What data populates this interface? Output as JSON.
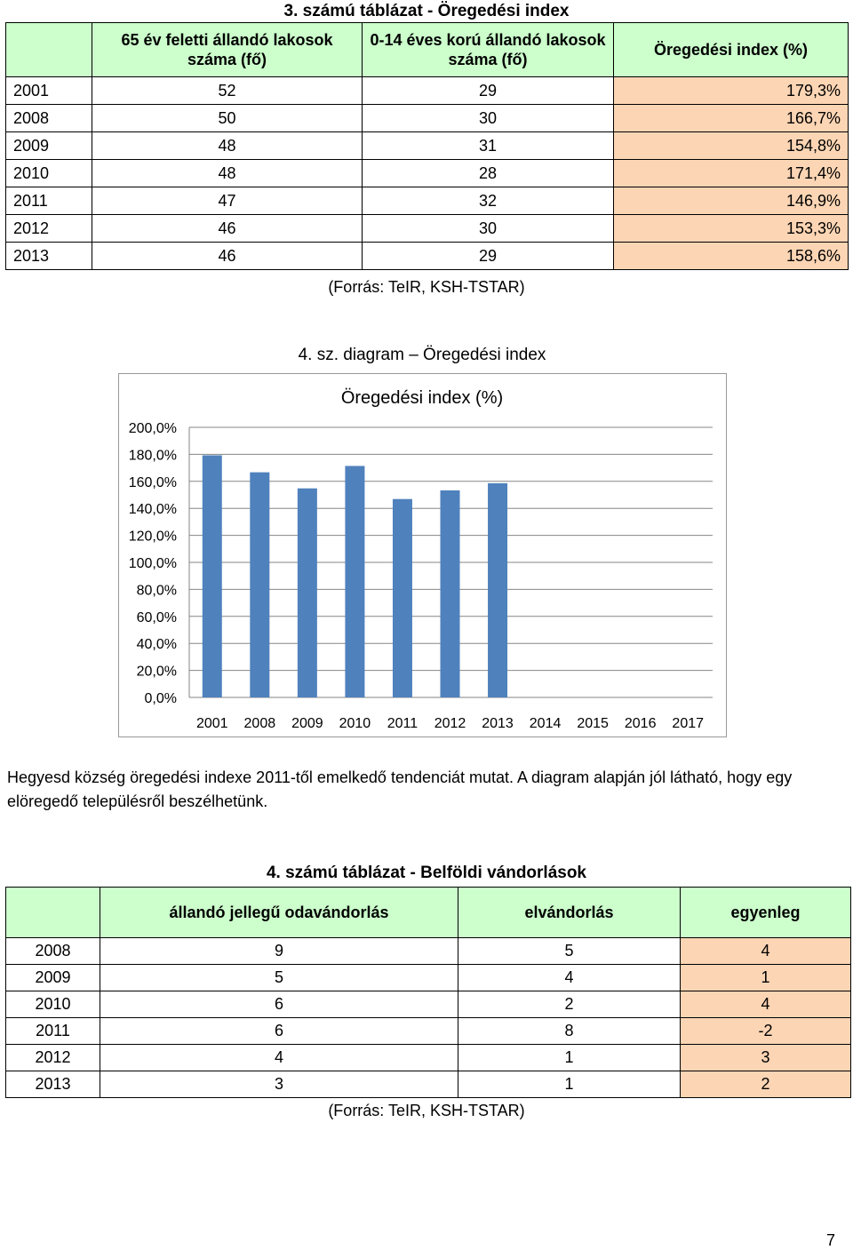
{
  "table1": {
    "caption": "3. számú táblázat - Öregedési index",
    "headers": [
      "65 év feletti állandó lakosok száma (fő)",
      "0-14 éves korú állandó lakosok száma (fő)",
      "Öregedési index (%)"
    ],
    "rows": [
      [
        "2001",
        "52",
        "29",
        "179,3%"
      ],
      [
        "2008",
        "50",
        "30",
        "166,7%"
      ],
      [
        "2009",
        "48",
        "31",
        "154,8%"
      ],
      [
        "2010",
        "48",
        "28",
        "171,4%"
      ],
      [
        "2011",
        "47",
        "32",
        "146,9%"
      ],
      [
        "2012",
        "46",
        "30",
        "153,3%"
      ],
      [
        "2013",
        "46",
        "29",
        "158,6%"
      ]
    ],
    "source": "(Forrás: TeIR, KSH-TSTAR)"
  },
  "diagram_caption": "4. sz. diagram – Öregedési index",
  "chart_data": {
    "type": "bar",
    "title": "Öregedési index (%)",
    "categories": [
      "2001",
      "2008",
      "2009",
      "2010",
      "2011",
      "2012",
      "2013",
      "2014",
      "2015",
      "2016",
      "2017"
    ],
    "values": [
      179.3,
      166.7,
      154.8,
      171.4,
      146.9,
      153.3,
      158.6,
      null,
      null,
      null,
      null
    ],
    "ylim": [
      0,
      200
    ],
    "yticks": [
      "0,0%",
      "20,0%",
      "40,0%",
      "60,0%",
      "80,0%",
      "100,0%",
      "120,0%",
      "140,0%",
      "160,0%",
      "180,0%",
      "200,0%"
    ],
    "grid": true,
    "bar_color": "#4f81bd"
  },
  "paragraph": "Hegyesd község öregedési indexe 2011-től emelkedő tendenciát mutat. A diagram alapján jól látható, hogy egy elöregedő településről beszélhetünk.",
  "table2": {
    "caption": "4. számú táblázat - Belföldi vándorlások",
    "headers": [
      "állandó jellegű odavándorlás",
      "elvándorlás",
      "egyenleg"
    ],
    "rows": [
      [
        "2008",
        "9",
        "5",
        "4"
      ],
      [
        "2009",
        "5",
        "4",
        "1"
      ],
      [
        "2010",
        "6",
        "2",
        "4"
      ],
      [
        "2011",
        "6",
        "8",
        "-2"
      ],
      [
        "2012",
        "4",
        "1",
        "3"
      ],
      [
        "2013",
        "3",
        "1",
        "2"
      ]
    ],
    "source": "(Forrás: TeIR, KSH-TSTAR)"
  },
  "page_number": "7"
}
